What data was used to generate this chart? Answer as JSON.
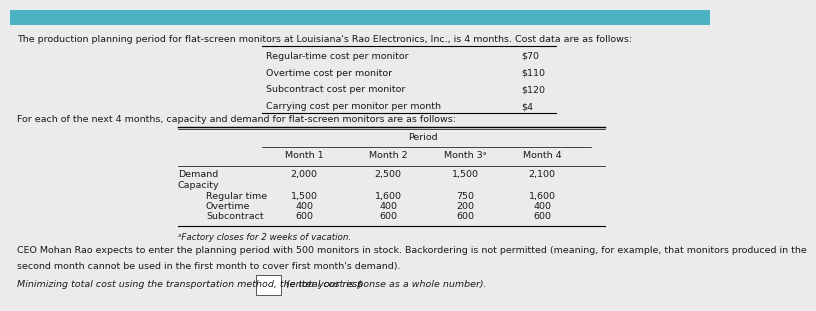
{
  "header_text": "The production planning period for flat-screen monitors at Louisiana's Rao Electronics, Inc., is 4 months. Cost data are as follows:",
  "cost_labels": [
    "Regular-time cost per monitor",
    "Overtime cost per monitor",
    "Subcontract cost per monitor",
    "Carrying cost per monitor per month"
  ],
  "cost_values": [
    "$70",
    "$110",
    "$120",
    "$4"
  ],
  "table_intro": "For each of the next 4 months, capacity and demand for flat-screen monitors are as follows:",
  "period_label": "Period",
  "col_headers": [
    "Month 1",
    "Month 2",
    "Month 3ᵃ",
    "Month 4"
  ],
  "demand_row": [
    2000,
    2500,
    1500,
    2100
  ],
  "regular_row": [
    1500,
    1600,
    750,
    1600
  ],
  "overtime_row": [
    400,
    400,
    200,
    400
  ],
  "subcontract_row": [
    600,
    600,
    600,
    600
  ],
  "footnote": "ᵃFactory closes for 2 weeks of vacation.",
  "ceo_line1": "CEO Mohan Rao expects to enter the planning period with 500 monitors in stock. Backordering is not permitted (meaning, for example, that monitors produced in the",
  "ceo_line2": "second month cannot be used in the first month to cover first month's demand).",
  "minimize_prefix": "Minimizing total cost using the transportation method, the total cost is $",
  "minimize_suffix": "(enter your response as a whole number).",
  "bg_color": "#ebebeb",
  "header_bg": "#4db3c4",
  "text_color": "#1a1a1a",
  "fs": 6.8,
  "fs_table": 6.8
}
